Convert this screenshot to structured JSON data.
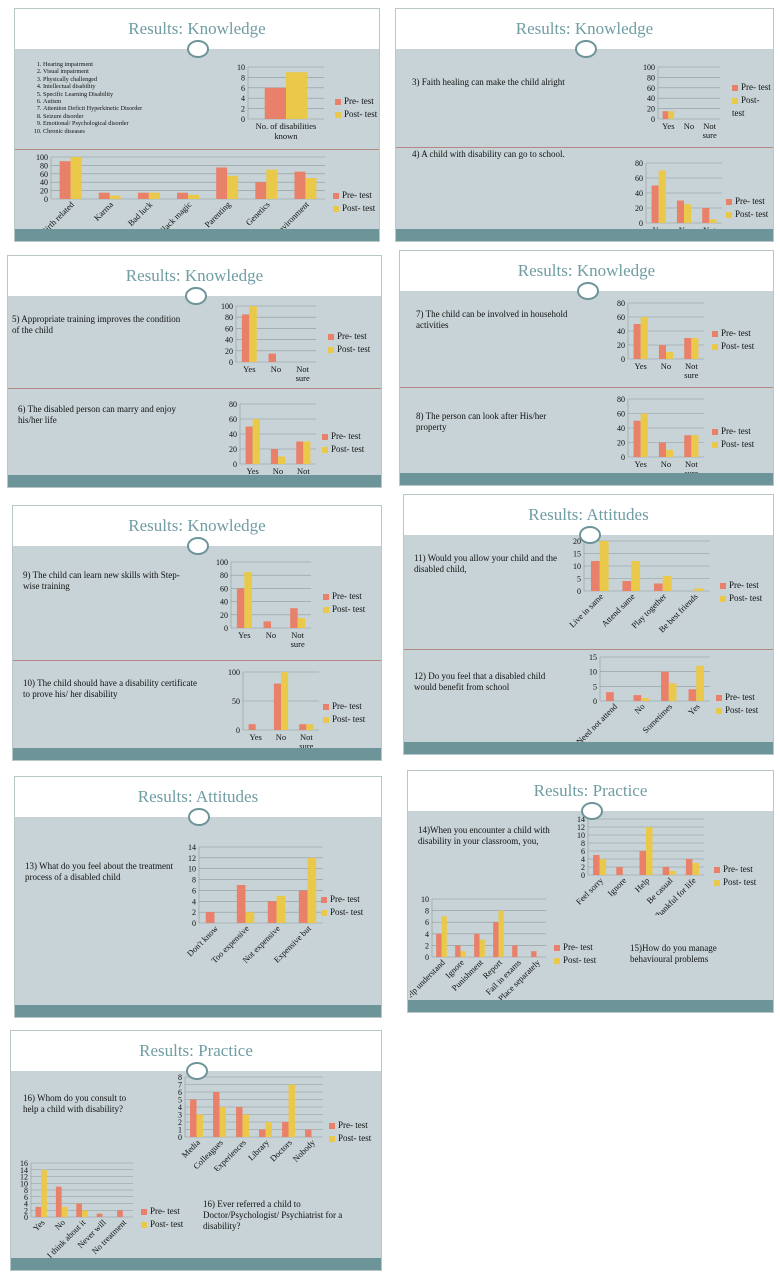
{
  "colors": {
    "pre": "#e8806a",
    "post": "#e9c84a",
    "grid": "#8e9a9c",
    "bg": "#c7d3d6",
    "accent": "#6f9da3"
  },
  "legend": {
    "pre": "Pre- test",
    "post": "Post- test"
  },
  "slides": [
    {
      "title": "Results: Knowledge"
    },
    {
      "title": "Results: Knowledge"
    },
    {
      "title": "Results: Knowledge"
    },
    {
      "title": "Results: Knowledge"
    },
    {
      "title": "Results: Knowledge"
    },
    {
      "title": "Results: Attitudes"
    },
    {
      "title": "Results: Attitudes"
    },
    {
      "title": "Results: Practice"
    },
    {
      "title": "Results: Practice"
    }
  ],
  "disability_list": [
    "Hearing impairment",
    "Visual impairment",
    "Physically challenged",
    "Intellectual disability",
    "Specific Learning Disability",
    "Autism",
    "Attention Deficit Hyperkinetic Disorder",
    "Seizure disorder",
    "Emotional/ Psychological disorder",
    "Chronic diseases"
  ],
  "questions": {
    "q3": "3)  Faith healing can make the child alright",
    "q4": "4) A child with disability can go to school.",
    "q5": "5) Appropriate training improves the condition of the child",
    "q6": "6) The disabled person can marry and enjoy his/her life",
    "q7": "7) The child can be involved in household activities",
    "q8": "8) The person can look after His/her property",
    "q9": "9) The child can learn new skills with Step- wise training",
    "q10": "10) The child should have a disability certificate to prove his/ her disability",
    "q11": "11) Would you allow your child and the disabled child,",
    "q12": "12) Do you feel that a disabled child would benefit from school",
    "q13": "13) What do you feel about the treatment process of a disabled child",
    "q14": "14)When you encounter a child with disability in your classroom, you,",
    "q15": "15)How do you manage behavioural problems",
    "q16": "16) Whom do you consult to help a child with disability?",
    "q16b": "16) Ever referred a child to Doctor/Psychologist/ Psychiatrist for a  disability?"
  },
  "chart_data": [
    {
      "id": "c1",
      "type": "bar",
      "categories": [
        "No. of disabilities known"
      ],
      "series": [
        {
          "name": "Pre- test",
          "values": [
            6
          ]
        },
        {
          "name": "Post- test",
          "values": [
            9
          ]
        }
      ],
      "ylim": [
        0,
        10
      ],
      "ticks": [
        0,
        2,
        4,
        6,
        8,
        10
      ]
    },
    {
      "id": "c2",
      "type": "bar",
      "categories": [
        "Birth related",
        "Karma",
        "Bad luck",
        "Black magic",
        "Parenting",
        "Genetics",
        "Environment"
      ],
      "series": [
        {
          "name": "Pre- test",
          "values": [
            90,
            15,
            15,
            15,
            75,
            40,
            65
          ]
        },
        {
          "name": "Post- test",
          "values": [
            100,
            8,
            15,
            10,
            55,
            70,
            50
          ]
        }
      ],
      "ylim": [
        0,
        100
      ],
      "ticks": [
        0,
        20,
        40,
        60,
        80,
        100
      ]
    },
    {
      "id": "c3",
      "type": "bar",
      "categories": [
        "Yes",
        "No",
        "Not sure"
      ],
      "series": [
        {
          "name": "Pre- test",
          "values": [
            15,
            0,
            0
          ]
        },
        {
          "name": "Post- test",
          "values": [
            15,
            0,
            0
          ]
        }
      ],
      "ylim": [
        0,
        100
      ],
      "ticks": [
        0,
        20,
        40,
        60,
        80,
        100
      ]
    },
    {
      "id": "c4",
      "type": "bar",
      "categories": [
        "Yes",
        "No",
        "Not sure"
      ],
      "series": [
        {
          "name": "Pre- test",
          "values": [
            50,
            30,
            20
          ]
        },
        {
          "name": "Post- test",
          "values": [
            70,
            25,
            5
          ]
        }
      ],
      "ylim": [
        0,
        80
      ],
      "ticks": [
        0,
        20,
        40,
        60,
        80
      ]
    },
    {
      "id": "c5",
      "type": "bar",
      "categories": [
        "Yes",
        "No",
        "Not sure"
      ],
      "series": [
        {
          "name": "Pre- test",
          "values": [
            85,
            15,
            0
          ]
        },
        {
          "name": "Post- test",
          "values": [
            100,
            0,
            0
          ]
        }
      ],
      "ylim": [
        0,
        100
      ],
      "ticks": [
        0,
        20,
        40,
        60,
        80,
        100
      ]
    },
    {
      "id": "c6",
      "type": "bar",
      "categories": [
        "Yes",
        "No",
        "Not sure"
      ],
      "series": [
        {
          "name": "Pre- test",
          "values": [
            50,
            20,
            30
          ]
        },
        {
          "name": "Post- test",
          "values": [
            60,
            10,
            30
          ]
        }
      ],
      "ylim": [
        0,
        80
      ],
      "ticks": [
        0,
        20,
        40,
        60,
        80
      ]
    },
    {
      "id": "c7",
      "type": "bar",
      "categories": [
        "Yes",
        "No",
        "Not sure"
      ],
      "series": [
        {
          "name": "Pre- test",
          "values": [
            50,
            20,
            30
          ]
        },
        {
          "name": "Post- test",
          "values": [
            60,
            10,
            30
          ]
        }
      ],
      "ylim": [
        0,
        80
      ],
      "ticks": [
        0,
        20,
        40,
        60,
        80
      ]
    },
    {
      "id": "c8",
      "type": "bar",
      "categories": [
        "Yes",
        "No",
        "Not sure"
      ],
      "series": [
        {
          "name": "Pre- test",
          "values": [
            50,
            20,
            30
          ]
        },
        {
          "name": "Post- test",
          "values": [
            60,
            10,
            30
          ]
        }
      ],
      "ylim": [
        0,
        80
      ],
      "ticks": [
        0,
        20,
        40,
        60,
        80
      ]
    },
    {
      "id": "c9",
      "type": "bar",
      "categories": [
        "Yes",
        "No",
        "Not sure"
      ],
      "series": [
        {
          "name": "Pre- test",
          "values": [
            60,
            10,
            30
          ]
        },
        {
          "name": "Post- test",
          "values": [
            85,
            0,
            15
          ]
        }
      ],
      "ylim": [
        0,
        100
      ],
      "ticks": [
        0,
        20,
        40,
        60,
        80,
        100
      ]
    },
    {
      "id": "c10",
      "type": "bar",
      "categories": [
        "Yes",
        "No",
        "Not sure"
      ],
      "series": [
        {
          "name": "Pre- test",
          "values": [
            10,
            80,
            10
          ]
        },
        {
          "name": "Post- test",
          "values": [
            0,
            100,
            10
          ]
        }
      ],
      "ylim": [
        0,
        100
      ],
      "ticks": [
        0,
        50,
        100
      ]
    },
    {
      "id": "c11",
      "type": "bar",
      "categories": [
        "Live in same",
        "Attend same",
        "Play together",
        "Be best friends"
      ],
      "series": [
        {
          "name": "Pre- test",
          "values": [
            12,
            4,
            3,
            0
          ]
        },
        {
          "name": "Post- test",
          "values": [
            20,
            12,
            6,
            1
          ]
        }
      ],
      "ylim": [
        0,
        20
      ],
      "ticks": [
        0,
        5,
        10,
        15,
        20
      ]
    },
    {
      "id": "c12",
      "type": "bar",
      "categories": [
        "Need not attend",
        "No",
        "Sometimes",
        "Yes"
      ],
      "series": [
        {
          "name": "Pre- test",
          "values": [
            3,
            2,
            10,
            4
          ]
        },
        {
          "name": "Post- test",
          "values": [
            0,
            1,
            6,
            12
          ]
        }
      ],
      "ylim": [
        0,
        15
      ],
      "ticks": [
        0,
        5,
        10,
        15
      ]
    },
    {
      "id": "c13",
      "type": "bar",
      "categories": [
        "Don't know",
        "Too expensive",
        "Not expensive",
        "Expensive but"
      ],
      "series": [
        {
          "name": "Pre- test",
          "values": [
            2,
            7,
            4,
            6
          ]
        },
        {
          "name": "Post- test",
          "values": [
            0,
            2,
            5,
            12
          ]
        }
      ],
      "ylim": [
        0,
        14
      ],
      "ticks": [
        0,
        2,
        4,
        6,
        8,
        10,
        12,
        14
      ]
    },
    {
      "id": "c14",
      "type": "bar",
      "categories": [
        "Feel sorry",
        "Ignore",
        "Help",
        "Be casual",
        "Thankful for life"
      ],
      "series": [
        {
          "name": "Pre- test",
          "values": [
            5,
            2,
            6,
            2,
            4
          ]
        },
        {
          "name": "Post- test",
          "values": [
            4,
            0,
            12,
            1,
            3
          ]
        }
      ],
      "ylim": [
        0,
        14
      ],
      "ticks": [
        0,
        2,
        4,
        6,
        8,
        10,
        12,
        14
      ]
    },
    {
      "id": "c15",
      "type": "bar",
      "categories": [
        "Help understand",
        "Ignore",
        "Punishment",
        "Report",
        "Fail in exams",
        "Place separately"
      ],
      "series": [
        {
          "name": "Pre- test",
          "values": [
            4,
            2,
            4,
            6,
            2,
            1
          ]
        },
        {
          "name": "Post- test",
          "values": [
            7,
            1,
            3,
            8,
            0,
            0
          ]
        }
      ],
      "ylim": [
        0,
        10
      ],
      "ticks": [
        0,
        2,
        4,
        6,
        8,
        10
      ]
    },
    {
      "id": "c16",
      "type": "bar",
      "categories": [
        "Media",
        "Colleagues",
        "Experiences",
        "Library",
        "Doctors",
        "Nobody"
      ],
      "series": [
        {
          "name": "Pre- test",
          "values": [
            5,
            6,
            4,
            1,
            2,
            1
          ]
        },
        {
          "name": "Post- test",
          "values": [
            3,
            4,
            3,
            2,
            7,
            0
          ]
        }
      ],
      "ylim": [
        0,
        8
      ],
      "ticks": [
        0,
        1,
        2,
        3,
        4,
        5,
        6,
        7,
        8
      ]
    },
    {
      "id": "c17",
      "type": "bar",
      "categories": [
        "Yes",
        "No",
        "I think about it",
        "Never will",
        "No treatment"
      ],
      "series": [
        {
          "name": "Pre- test",
          "values": [
            3,
            9,
            4,
            1,
            2
          ]
        },
        {
          "name": "Post- test",
          "values": [
            14,
            3,
            2,
            0,
            0
          ]
        }
      ],
      "ylim": [
        0,
        16
      ],
      "ticks": [
        0,
        2,
        4,
        6,
        8,
        10,
        12,
        14,
        16
      ]
    }
  ]
}
